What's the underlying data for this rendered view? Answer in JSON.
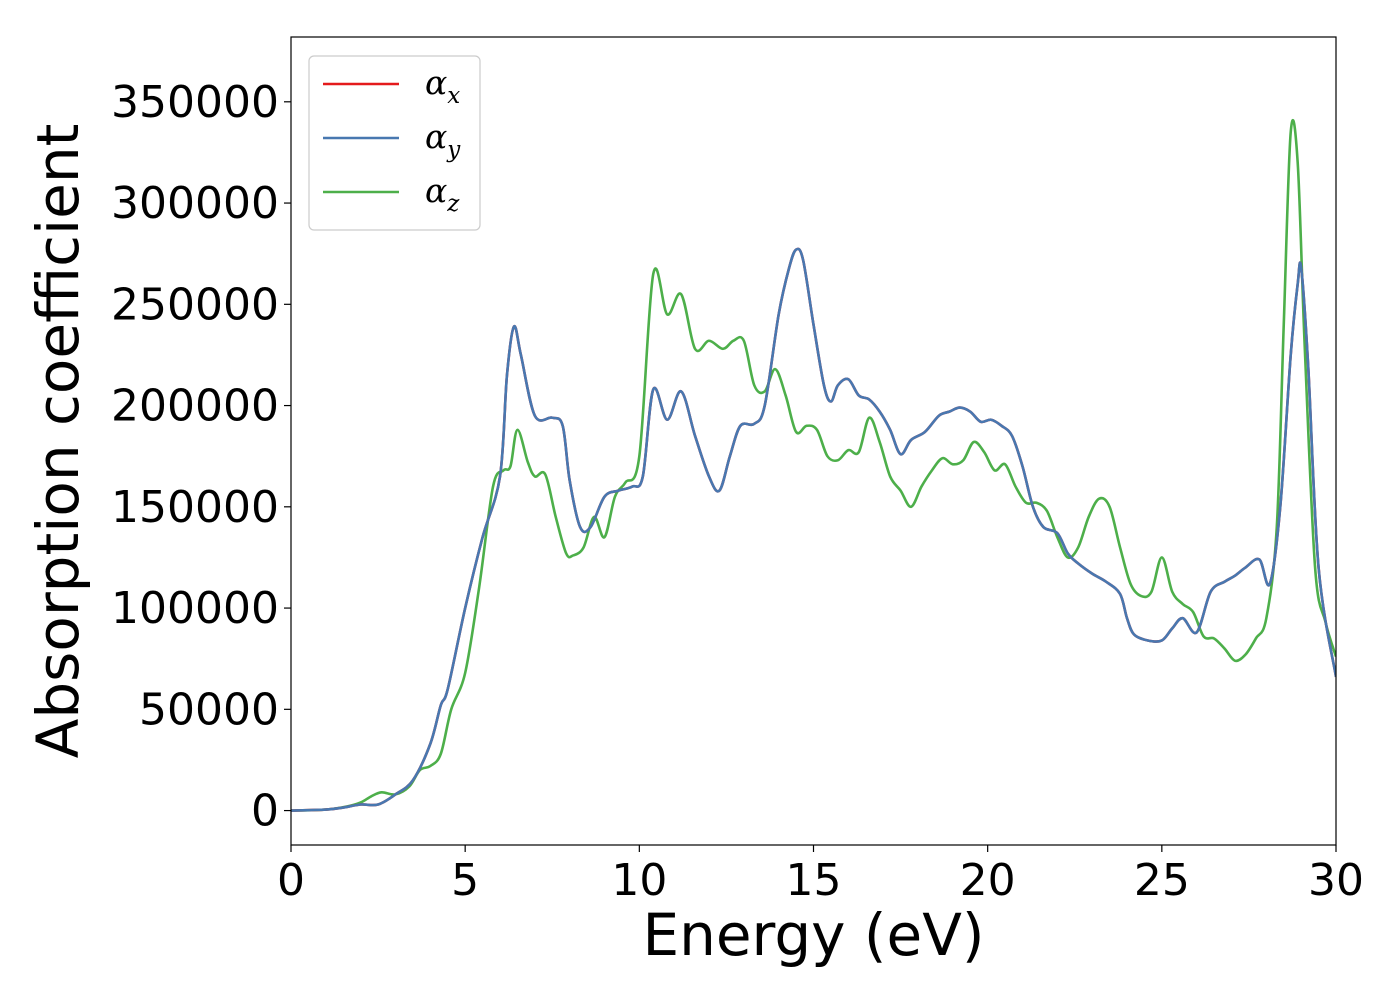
{
  "chart_data": {
    "type": "line",
    "title": "",
    "xlabel": "Energy (eV)",
    "ylabel": "Absorption coefficient",
    "xlim": [
      0,
      30
    ],
    "ylim": [
      -17000,
      382000
    ],
    "xticks": [
      0,
      5,
      10,
      15,
      20,
      25,
      30
    ],
    "xtick_labels": [
      "0",
      "5",
      "10",
      "15",
      "20",
      "25",
      "30"
    ],
    "yticks": [
      0,
      50000,
      100000,
      150000,
      200000,
      250000,
      300000,
      350000
    ],
    "ytick_labels": [
      "0",
      "50000",
      "100000",
      "150000",
      "200000",
      "250000",
      "300000",
      "350000"
    ],
    "grid": false,
    "legend_position": "top-left",
    "series": [
      {
        "name": "αx",
        "legend_main": "α",
        "legend_sub": "x",
        "color": "#e41a1c",
        "x": [
          0,
          1,
          1.5,
          2,
          2.5,
          3,
          3.5,
          4,
          4.3,
          4.5,
          5,
          5.5,
          6,
          6.2,
          6.4,
          6.6,
          7,
          7.5,
          7.8,
          8,
          8.3,
          8.6,
          9,
          9.4,
          9.8,
          10.1,
          10.4,
          10.8,
          11.2,
          11.6,
          12,
          12.3,
          12.6,
          12.9,
          13.3,
          13.6,
          14,
          14.3,
          14.5,
          14.7,
          15,
          15.3,
          15.5,
          15.7,
          16,
          16.3,
          16.6,
          16.9,
          17.2,
          17.5,
          17.8,
          18.2,
          18.6,
          18.9,
          19.2,
          19.5,
          19.8,
          20.1,
          20.4,
          20.7,
          21,
          21.3,
          21.6,
          22,
          22.3,
          22.6,
          23,
          23.4,
          23.8,
          24,
          24.2,
          24.6,
          25,
          25.3,
          25.6,
          26,
          26.4,
          26.8,
          27.1,
          27.4,
          27.8,
          28.1,
          28.4,
          28.7,
          28.9,
          29,
          29.2,
          29.5,
          30
        ],
        "y": [
          0,
          500,
          1500,
          3000,
          3000,
          8000,
          15000,
          33000,
          52000,
          60000,
          100000,
          135000,
          165000,
          215000,
          239000,
          225000,
          195000,
          194000,
          190000,
          163000,
          140000,
          140000,
          155000,
          158000,
          160000,
          165000,
          208000,
          193000,
          207000,
          185000,
          165000,
          158000,
          175000,
          190000,
          191000,
          200000,
          245000,
          268000,
          277000,
          272000,
          240000,
          210000,
          202000,
          210000,
          213000,
          205000,
          203000,
          197000,
          188000,
          176000,
          183000,
          187000,
          195000,
          197000,
          199000,
          197000,
          192000,
          193000,
          190000,
          185000,
          170000,
          150000,
          140000,
          137000,
          127000,
          122000,
          117000,
          113000,
          107000,
          95000,
          87000,
          84000,
          84000,
          90000,
          95000,
          88000,
          108000,
          113000,
          116000,
          120000,
          124000,
          112000,
          150000,
          225000,
          260000,
          268000,
          220000,
          120000,
          66000
        ]
      },
      {
        "name": "αy",
        "legend_main": "α",
        "legend_sub": "y",
        "color": "#4878b0",
        "x": [
          0,
          1,
          1.5,
          2,
          2.5,
          3,
          3.5,
          4,
          4.3,
          4.5,
          5,
          5.5,
          6,
          6.2,
          6.4,
          6.6,
          7,
          7.5,
          7.8,
          8,
          8.3,
          8.6,
          9,
          9.4,
          9.8,
          10.1,
          10.4,
          10.8,
          11.2,
          11.6,
          12,
          12.3,
          12.6,
          12.9,
          13.3,
          13.6,
          14,
          14.3,
          14.5,
          14.7,
          15,
          15.3,
          15.5,
          15.7,
          16,
          16.3,
          16.6,
          16.9,
          17.2,
          17.5,
          17.8,
          18.2,
          18.6,
          18.9,
          19.2,
          19.5,
          19.8,
          20.1,
          20.4,
          20.7,
          21,
          21.3,
          21.6,
          22,
          22.3,
          22.6,
          23,
          23.4,
          23.8,
          24,
          24.2,
          24.6,
          25,
          25.3,
          25.6,
          26,
          26.4,
          26.8,
          27.1,
          27.4,
          27.8,
          28.1,
          28.4,
          28.7,
          28.9,
          29,
          29.2,
          29.5,
          30
        ],
        "y": [
          0,
          500,
          1500,
          3000,
          3000,
          8000,
          15000,
          33000,
          52000,
          60000,
          100000,
          135000,
          165000,
          215000,
          239000,
          225000,
          195000,
          194000,
          190000,
          163000,
          140000,
          140000,
          155000,
          158000,
          160000,
          165000,
          208000,
          193000,
          207000,
          185000,
          165000,
          158000,
          175000,
          190000,
          191000,
          200000,
          245000,
          268000,
          277000,
          272000,
          240000,
          210000,
          202000,
          210000,
          213000,
          205000,
          203000,
          197000,
          188000,
          176000,
          183000,
          187000,
          195000,
          197000,
          199000,
          197000,
          192000,
          193000,
          190000,
          185000,
          170000,
          150000,
          140000,
          137000,
          127000,
          122000,
          117000,
          113000,
          107000,
          95000,
          87000,
          84000,
          84000,
          90000,
          95000,
          88000,
          108000,
          113000,
          116000,
          120000,
          124000,
          112000,
          150000,
          225000,
          260000,
          268000,
          220000,
          120000,
          66000
        ]
      },
      {
        "name": "αz",
        "legend_main": "α",
        "legend_sub": "z",
        "color": "#4daf4a",
        "x": [
          0,
          1,
          1.6,
          2,
          2.3,
          2.6,
          3,
          3.4,
          3.7,
          4,
          4.3,
          4.6,
          5,
          5.4,
          5.8,
          6.1,
          6.3,
          6.5,
          6.8,
          7,
          7.3,
          7.6,
          7.9,
          8.1,
          8.4,
          8.7,
          9,
          9.3,
          9.6,
          10,
          10.4,
          10.8,
          11.2,
          11.6,
          12,
          12.4,
          12.7,
          13,
          13.3,
          13.6,
          13.9,
          14.2,
          14.5,
          14.8,
          15.1,
          15.4,
          15.7,
          16,
          16.3,
          16.6,
          16.9,
          17.2,
          17.5,
          17.8,
          18.1,
          18.4,
          18.7,
          19,
          19.3,
          19.6,
          19.9,
          20.2,
          20.5,
          20.8,
          21.1,
          21.4,
          21.7,
          22,
          22.3,
          22.6,
          22.9,
          23.2,
          23.5,
          23.8,
          24.1,
          24.4,
          24.7,
          25,
          25.3,
          25.6,
          25.9,
          26.2,
          26.5,
          26.8,
          27.1,
          27.4,
          27.7,
          28,
          28.3,
          28.5,
          28.7,
          28.9,
          29.1,
          29.4,
          29.7,
          30
        ],
        "y": [
          0,
          500,
          2000,
          4000,
          7000,
          9000,
          8000,
          12000,
          20000,
          22000,
          28000,
          50000,
          68000,
          110000,
          160000,
          168000,
          170000,
          188000,
          172000,
          165000,
          166000,
          145000,
          127000,
          126000,
          130000,
          145000,
          135000,
          155000,
          162000,
          175000,
          265000,
          245000,
          255000,
          228000,
          232000,
          228000,
          232000,
          232000,
          210000,
          207000,
          218000,
          205000,
          187000,
          190000,
          188000,
          175000,
          173000,
          178000,
          177000,
          194000,
          182000,
          165000,
          158000,
          150000,
          160000,
          168000,
          174000,
          171000,
          173000,
          182000,
          177000,
          168000,
          171000,
          160000,
          152000,
          152000,
          148000,
          135000,
          125000,
          130000,
          145000,
          154000,
          150000,
          130000,
          112000,
          106000,
          108000,
          125000,
          108000,
          102000,
          98000,
          86000,
          85000,
          80000,
          74000,
          77000,
          85000,
          95000,
          140000,
          240000,
          335000,
          320000,
          230000,
          120000,
          93000,
          76000
        ]
      }
    ]
  }
}
